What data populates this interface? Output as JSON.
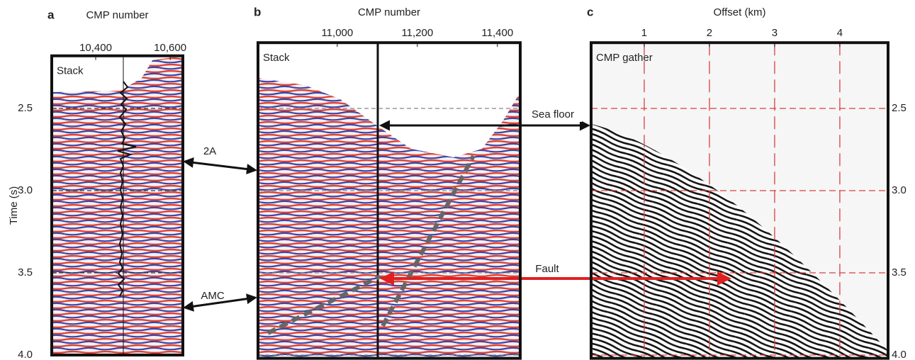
{
  "panels": [
    {
      "letter": "a",
      "x_label": "CMP number",
      "inset_label": "Stack",
      "xlim": [
        10282,
        10634
      ],
      "ylim": [
        4.0,
        2.18
      ],
      "xticks": [
        {
          "value": 10400,
          "label": "10,400"
        },
        {
          "value": 10600,
          "label": "10,600"
        }
      ]
    },
    {
      "letter": "b",
      "x_label": "CMP number",
      "inset_label": "Stack",
      "xlim": [
        10802,
        11457
      ],
      "ylim": [
        4.02,
        2.1
      ],
      "xticks": [
        {
          "value": 11000,
          "label": "11,000"
        },
        {
          "value": 11200,
          "label": "11,200"
        },
        {
          "value": 11400,
          "label": "11,400"
        }
      ]
    },
    {
      "letter": "c",
      "x_label": "Offset (km)",
      "inset_label": "CMP gather",
      "xlim": [
        0.185,
        4.74
      ],
      "ylim": [
        4.02,
        2.1
      ],
      "xticks": [
        1,
        2,
        3,
        4
      ]
    }
  ],
  "time_axis": {
    "label": "Time (s)",
    "ticks": [
      2.5,
      {
        "value": 3.0,
        "label": "3.0"
      },
      3.5,
      {
        "value": 4.0,
        "label": "4.0"
      }
    ]
  },
  "annotations": {
    "a2": "2A",
    "amc": "AMC",
    "sea_floor": "Sea floor",
    "fault": "Fault"
  }
}
